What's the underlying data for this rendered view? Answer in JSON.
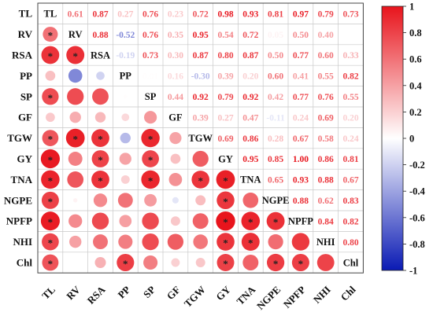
{
  "chart_data": {
    "type": "heatmap",
    "variables": [
      "TL",
      "RV",
      "RSA",
      "PP",
      "SP",
      "GF",
      "TGW",
      "GY",
      "TNA",
      "NGPE",
      "NPFP",
      "NHI",
      "Chl"
    ],
    "upper_triangle_values": [
      [
        "TL",
        0.61,
        0.87,
        0.27,
        0.76,
        0.23,
        0.72,
        0.98,
        0.93,
        0.81,
        0.97,
        0.79,
        0.73
      ],
      [
        null,
        "RV",
        0.88,
        -0.52,
        0.76,
        0.35,
        0.95,
        0.54,
        0.72,
        0.05,
        0.5,
        0.4,
        null
      ],
      [
        null,
        null,
        "RSA",
        -0.19,
        0.73,
        0.3,
        0.87,
        0.8,
        0.87,
        0.5,
        0.77,
        0.6,
        0.33
      ],
      [
        null,
        null,
        null,
        "PP",
        0.01,
        0.16,
        -0.3,
        0.39,
        0.2,
        0.6,
        0.41,
        0.55,
        0.82
      ],
      [
        null,
        null,
        null,
        null,
        "SP",
        0.44,
        0.92,
        0.79,
        0.92,
        0.42,
        0.77,
        0.76,
        0.55
      ],
      [
        null,
        null,
        null,
        null,
        null,
        "GF",
        0.39,
        0.27,
        0.47,
        -0.11,
        0.24,
        0.69,
        0.2
      ],
      [
        null,
        null,
        null,
        null,
        null,
        null,
        "TGW",
        0.69,
        0.86,
        0.28,
        0.67,
        0.58,
        0.24
      ],
      [
        null,
        null,
        null,
        null,
        null,
        null,
        null,
        "GY",
        0.95,
        0.85,
        1.0,
        0.86,
        0.81
      ],
      [
        null,
        null,
        null,
        null,
        null,
        null,
        null,
        null,
        "TNA",
        0.65,
        0.93,
        0.88,
        0.67
      ],
      [
        null,
        null,
        null,
        null,
        null,
        null,
        null,
        null,
        null,
        "NGPE",
        0.88,
        0.62,
        0.83
      ],
      [
        null,
        null,
        null,
        null,
        null,
        null,
        null,
        null,
        null,
        null,
        "NPFP",
        0.84,
        0.82
      ],
      [
        null,
        null,
        null,
        null,
        null,
        null,
        null,
        null,
        null,
        null,
        null,
        "NHI",
        0.8
      ],
      [
        null,
        null,
        null,
        null,
        null,
        null,
        null,
        null,
        null,
        null,
        null,
        null,
        "Chl"
      ]
    ],
    "significant_pairs": [
      [
        "TL",
        "RV"
      ],
      [
        "TL",
        "RSA"
      ],
      [
        "TL",
        "SP"
      ],
      [
        "TL",
        "TGW"
      ],
      [
        "TL",
        "GY"
      ],
      [
        "TL",
        "TNA"
      ],
      [
        "TL",
        "NGPE"
      ],
      [
        "TL",
        "NPFP"
      ],
      [
        "TL",
        "NHI"
      ],
      [
        "TL",
        "Chl"
      ],
      [
        "RV",
        "RSA"
      ],
      [
        "RV",
        "TGW"
      ],
      [
        "RSA",
        "TGW"
      ],
      [
        "RSA",
        "GY"
      ],
      [
        "RSA",
        "TNA"
      ],
      [
        "PP",
        "Chl"
      ],
      [
        "SP",
        "TGW"
      ],
      [
        "SP",
        "GY"
      ],
      [
        "SP",
        "TNA"
      ],
      [
        "TGW",
        "TNA"
      ],
      [
        "GY",
        "TNA"
      ],
      [
        "GY",
        "NGPE"
      ],
      [
        "GY",
        "NPFP"
      ],
      [
        "GY",
        "NHI"
      ],
      [
        "GY",
        "Chl"
      ],
      [
        "TNA",
        "NPFP"
      ],
      [
        "TNA",
        "NHI"
      ],
      [
        "NGPE",
        "NPFP"
      ],
      [
        "NGPE",
        "Chl"
      ],
      [
        "NPFP",
        "Chl"
      ]
    ],
    "colorbar": {
      "min": -1,
      "max": 1,
      "ticks": [
        "1",
        "0.8",
        "0.6",
        "0.4",
        "0.2",
        "0",
        "-0.2",
        "-0.4",
        "-0.6",
        "-0.8",
        "-1"
      ],
      "colors": {
        "negative": "#0a1ab4",
        "zero": "#ffffff",
        "positive": "#e8141c"
      }
    },
    "significance_marker": "*"
  }
}
